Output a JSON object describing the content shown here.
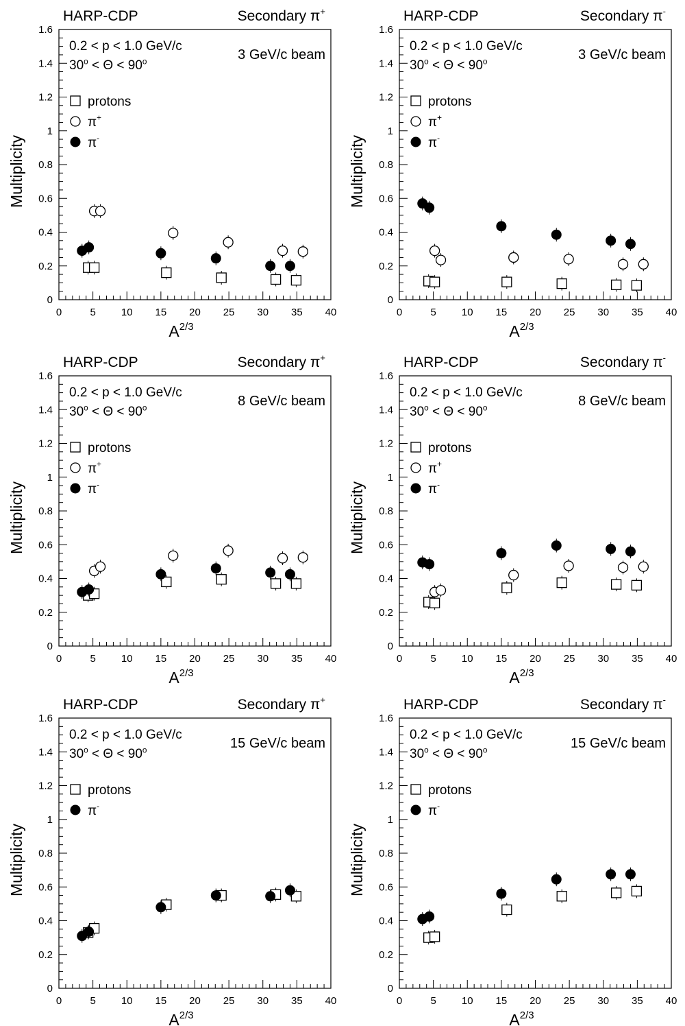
{
  "chart_data": [
    {
      "type": "scatter",
      "header_left": "HARP-CDP",
      "header_right": "Secondary",
      "header_right_particle": "π+",
      "cut_momentum": "0.2 < p < 1.0 GeV/c",
      "cut_angle": "30° < Θ < 90°",
      "beam": "3 GeV/c beam",
      "xlabel": "A2/3",
      "ylabel": "Multiplicity",
      "xlim": [
        0,
        40
      ],
      "ylim": [
        0,
        1.6
      ],
      "xticks": [
        "0",
        "5",
        "10",
        "15",
        "20",
        "25",
        "30",
        "35",
        "40"
      ],
      "yticks": [
        "0",
        "0.2",
        "0.4",
        "0.6",
        "0.8",
        "1",
        "1.2",
        "1.4",
        "1.6"
      ],
      "legend": [
        "protons",
        "π+",
        "π-"
      ],
      "series": [
        {
          "name": "protons",
          "marker": "open-square",
          "x": [
            4.3,
            5.2,
            15.8,
            23.9,
            31.9,
            34.9
          ],
          "y": [
            0.19,
            0.19,
            0.16,
            0.13,
            0.12,
            0.115
          ]
        },
        {
          "name": "π+",
          "marker": "open-circle",
          "x": [
            5.2,
            6.1,
            16.8,
            24.9,
            32.9,
            35.9
          ],
          "y": [
            0.525,
            0.525,
            0.395,
            0.34,
            0.29,
            0.285
          ]
        },
        {
          "name": "π-",
          "marker": "filled-circle",
          "x": [
            3.4,
            4.4,
            15.0,
            23.1,
            31.1,
            34.0
          ],
          "y": [
            0.29,
            0.31,
            0.275,
            0.245,
            0.2,
            0.2
          ]
        }
      ]
    },
    {
      "type": "scatter",
      "header_left": "HARP-CDP",
      "header_right": "Secondary",
      "header_right_particle": "π-",
      "cut_momentum": "0.2 < p < 1.0 GeV/c",
      "cut_angle": "30° < Θ < 90°",
      "beam": "3 GeV/c beam",
      "xlabel": "A2/3",
      "ylabel": "Multiplicity",
      "xlim": [
        0,
        40
      ],
      "ylim": [
        0,
        1.6
      ],
      "xticks": [
        "0",
        "5",
        "10",
        "15",
        "20",
        "25",
        "30",
        "35",
        "40"
      ],
      "yticks": [
        "0",
        "0.2",
        "0.4",
        "0.6",
        "0.8",
        "1",
        "1.2",
        "1.4",
        "1.6"
      ],
      "legend": [
        "protons",
        "π+",
        "π-"
      ],
      "series": [
        {
          "name": "protons",
          "marker": "open-square",
          "x": [
            4.3,
            5.2,
            15.8,
            23.9,
            31.9,
            34.9
          ],
          "y": [
            0.11,
            0.105,
            0.105,
            0.095,
            0.088,
            0.085
          ]
        },
        {
          "name": "π+",
          "marker": "open-circle",
          "x": [
            5.2,
            6.1,
            16.8,
            24.9,
            32.9,
            35.9
          ],
          "y": [
            0.29,
            0.235,
            0.25,
            0.24,
            0.21,
            0.21
          ]
        },
        {
          "name": "π-",
          "marker": "filled-circle",
          "x": [
            3.4,
            4.4,
            15.0,
            23.1,
            31.1,
            34.0
          ],
          "y": [
            0.57,
            0.545,
            0.435,
            0.385,
            0.35,
            0.33
          ]
        }
      ]
    },
    {
      "type": "scatter",
      "header_left": "HARP-CDP",
      "header_right": "Secondary",
      "header_right_particle": "π+",
      "cut_momentum": "0.2 < p < 1.0 GeV/c",
      "cut_angle": "30° < Θ < 90°",
      "beam": "8 GeV/c beam",
      "xlabel": "A2/3",
      "ylabel": "Multiplicity",
      "xlim": [
        0,
        40
      ],
      "ylim": [
        0,
        1.6
      ],
      "xticks": [
        "0",
        "5",
        "10",
        "15",
        "20",
        "25",
        "30",
        "35",
        "40"
      ],
      "yticks": [
        "0",
        "0.2",
        "0.4",
        "0.6",
        "0.8",
        "1",
        "1.2",
        "1.4",
        "1.6"
      ],
      "legend": [
        "protons",
        "π+",
        "π-"
      ],
      "series": [
        {
          "name": "protons",
          "marker": "open-square",
          "x": [
            4.3,
            5.2,
            15.8,
            23.9,
            31.9,
            34.9
          ],
          "y": [
            0.3,
            0.31,
            0.38,
            0.395,
            0.37,
            0.37
          ]
        },
        {
          "name": "π+",
          "marker": "open-circle",
          "x": [
            5.2,
            6.1,
            16.8,
            24.9,
            32.9,
            35.9
          ],
          "y": [
            0.445,
            0.47,
            0.535,
            0.565,
            0.52,
            0.525
          ]
        },
        {
          "name": "π-",
          "marker": "filled-circle",
          "x": [
            3.4,
            4.4,
            15.0,
            23.1,
            31.1,
            34.0
          ],
          "y": [
            0.32,
            0.335,
            0.425,
            0.46,
            0.435,
            0.425
          ]
        }
      ]
    },
    {
      "type": "scatter",
      "header_left": "HARP-CDP",
      "header_right": "Secondary",
      "header_right_particle": "π-",
      "cut_momentum": "0.2 < p < 1.0 GeV/c",
      "cut_angle": "30° < Θ < 90°",
      "beam": "8 GeV/c beam",
      "xlabel": "A2/3",
      "ylabel": "Multiplicity",
      "xlim": [
        0,
        40
      ],
      "ylim": [
        0,
        1.6
      ],
      "xticks": [
        "0",
        "5",
        "10",
        "15",
        "20",
        "25",
        "30",
        "35",
        "40"
      ],
      "yticks": [
        "0",
        "0.2",
        "0.4",
        "0.6",
        "0.8",
        "1",
        "1.2",
        "1.4",
        "1.6"
      ],
      "legend": [
        "protons",
        "π+",
        "π-"
      ],
      "series": [
        {
          "name": "protons",
          "marker": "open-square",
          "x": [
            4.3,
            5.2,
            15.8,
            23.9,
            31.9,
            34.9
          ],
          "y": [
            0.26,
            0.255,
            0.345,
            0.375,
            0.365,
            0.36
          ]
        },
        {
          "name": "π+",
          "marker": "open-circle",
          "x": [
            5.2,
            6.1,
            16.8,
            24.9,
            32.9,
            35.9
          ],
          "y": [
            0.32,
            0.33,
            0.42,
            0.475,
            0.465,
            0.47
          ]
        },
        {
          "name": "π-",
          "marker": "filled-circle",
          "x": [
            3.4,
            4.4,
            15.0,
            23.1,
            31.1,
            34.0
          ],
          "y": [
            0.495,
            0.485,
            0.55,
            0.595,
            0.575,
            0.56
          ]
        }
      ]
    },
    {
      "type": "scatter",
      "header_left": "HARP-CDP",
      "header_right": "Secondary",
      "header_right_particle": "π+",
      "cut_momentum": "0.2 < p < 1.0 GeV/c",
      "cut_angle": "30° < Θ < 90°",
      "beam": "15 GeV/c beam",
      "xlabel": "A2/3",
      "ylabel": "Multiplicity",
      "xlim": [
        0,
        40
      ],
      "ylim": [
        0,
        1.6
      ],
      "xticks": [
        "0",
        "5",
        "10",
        "15",
        "20",
        "25",
        "30",
        "35",
        "40"
      ],
      "yticks": [
        "0",
        "0.2",
        "0.4",
        "0.6",
        "0.8",
        "1",
        "1.2",
        "1.4",
        "1.6"
      ],
      "legend": [
        "protons",
        "π-"
      ],
      "series": [
        {
          "name": "protons",
          "marker": "open-square",
          "x": [
            4.3,
            5.2,
            15.8,
            23.9,
            31.9,
            34.9
          ],
          "y": [
            0.33,
            0.355,
            0.495,
            0.55,
            0.555,
            0.545
          ]
        },
        {
          "name": "π-",
          "marker": "filled-circle",
          "x": [
            3.4,
            4.4,
            15.0,
            23.1,
            31.1,
            34.0
          ],
          "y": [
            0.31,
            0.335,
            0.48,
            0.55,
            0.545,
            0.58
          ]
        }
      ]
    },
    {
      "type": "scatter",
      "header_left": "HARP-CDP",
      "header_right": "Secondary",
      "header_right_particle": "π-",
      "cut_momentum": "0.2 < p < 1.0 GeV/c",
      "cut_angle": "30° < Θ < 90°",
      "beam": "15 GeV/c beam",
      "xlabel": "A2/3",
      "ylabel": "Multiplicity",
      "xlim": [
        0,
        40
      ],
      "ylim": [
        0,
        1.6
      ],
      "xticks": [
        "0",
        "5",
        "10",
        "15",
        "20",
        "25",
        "30",
        "35",
        "40"
      ],
      "yticks": [
        "0",
        "0.2",
        "0.4",
        "0.6",
        "0.8",
        "1",
        "1.2",
        "1.4",
        "1.6"
      ],
      "legend": [
        "protons",
        "π-"
      ],
      "series": [
        {
          "name": "protons",
          "marker": "open-square",
          "x": [
            4.3,
            5.2,
            15.8,
            23.9,
            31.9,
            34.9
          ],
          "y": [
            0.3,
            0.305,
            0.465,
            0.545,
            0.565,
            0.575
          ]
        },
        {
          "name": "π-",
          "marker": "filled-circle",
          "x": [
            3.4,
            4.4,
            15.0,
            23.1,
            31.1,
            34.0
          ],
          "y": [
            0.41,
            0.425,
            0.56,
            0.645,
            0.675,
            0.675
          ]
        }
      ]
    }
  ]
}
